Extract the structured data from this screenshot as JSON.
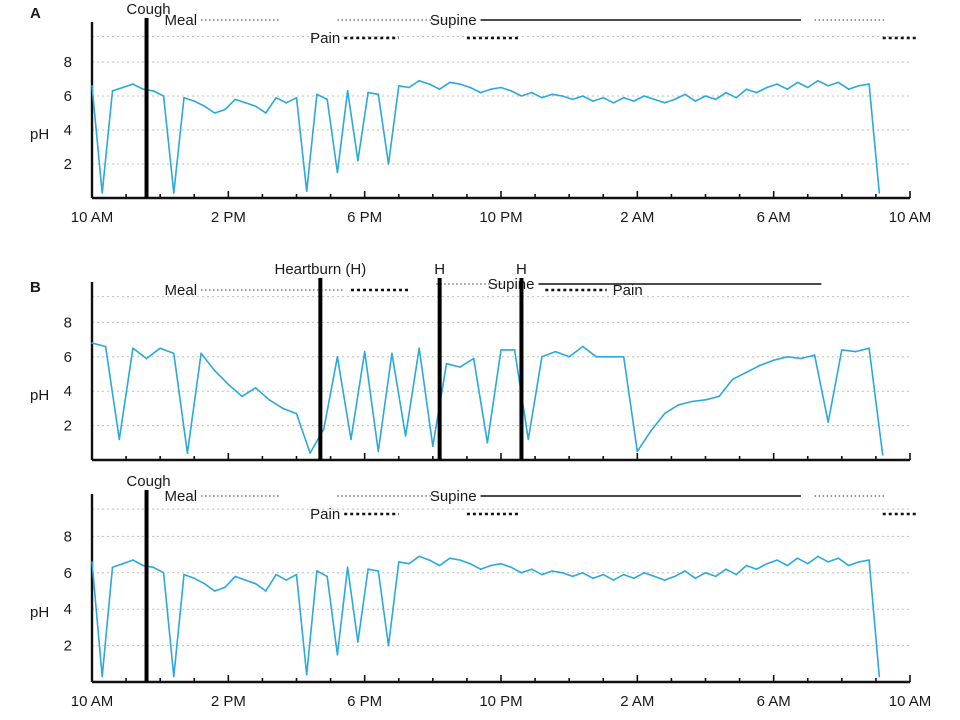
{
  "colors": {
    "trace": "#29a9dc",
    "axis": "#111111",
    "marker": "#000000"
  },
  "chart_data": [
    {
      "type": "line",
      "panel": "A",
      "ylabel": "pH",
      "ylim": [
        0,
        10
      ],
      "y_ticks": [
        2,
        4,
        6,
        8
      ],
      "xlim": [
        0,
        24
      ],
      "x_ticks": [
        0,
        4,
        8,
        12,
        16,
        20,
        24
      ],
      "x_tick_labels": [
        "10 AM",
        "2 PM",
        "6 PM",
        "10 PM",
        "2 AM",
        "6 AM",
        "10 AM"
      ],
      "grid": true,
      "profile": "reflux-dips",
      "series": [
        {
          "x": [
            0.0,
            0.3,
            0.6,
            0.9,
            1.2,
            1.5,
            1.8,
            2.1,
            2.4,
            2.7,
            3.0,
            3.3,
            3.6,
            3.9,
            4.2,
            4.5,
            4.8,
            5.1,
            5.4,
            5.7,
            6.0,
            6.3,
            6.6,
            6.9,
            7.2,
            7.5,
            7.8,
            8.1,
            8.4,
            8.7,
            9.0,
            9.3,
            9.6,
            9.9,
            10.2,
            10.5,
            10.8,
            11.1,
            11.4,
            11.7,
            12.0,
            12.3,
            12.6,
            12.9,
            13.2,
            13.5,
            13.8,
            14.1,
            14.4,
            14.7,
            15.0,
            15.3,
            15.6,
            15.9,
            16.2,
            16.5,
            16.8,
            17.1,
            17.4,
            17.7,
            18.0,
            18.3,
            18.6,
            18.9,
            19.2,
            19.5,
            19.8,
            20.1,
            20.4,
            20.7,
            21.0,
            21.3,
            21.6,
            21.9,
            22.2,
            22.5,
            22.8,
            23.1
          ],
          "values": [
            6.6,
            0.3,
            6.3,
            6.5,
            6.7,
            6.4,
            6.3,
            6.0,
            0.3,
            5.9,
            5.7,
            5.4,
            5.0,
            5.2,
            5.8,
            5.6,
            5.4,
            5.0,
            5.9,
            5.6,
            5.9,
            0.4,
            6.1,
            5.8,
            1.5,
            6.3,
            2.2,
            6.2,
            6.1,
            2.0,
            6.6,
            6.5,
            6.9,
            6.7,
            6.4,
            6.8,
            6.7,
            6.5,
            6.2,
            6.4,
            6.5,
            6.3,
            6.0,
            6.2,
            5.9,
            6.1,
            6.0,
            5.8,
            6.0,
            5.7,
            5.9,
            5.6,
            5.9,
            5.7,
            6.0,
            5.8,
            5.6,
            5.8,
            6.1,
            5.7,
            6.0,
            5.8,
            6.2,
            5.9,
            6.4,
            6.2,
            6.5,
            6.7,
            6.4,
            6.8,
            6.5,
            6.9,
            6.6,
            6.8,
            6.4,
            6.6,
            6.7,
            0.3
          ]
        }
      ],
      "events": [
        {
          "label": "Cough",
          "time": 1.6,
          "kind": "marker"
        }
      ],
      "periods": [
        {
          "label": "Meal",
          "start": 3.2,
          "end": 5.5,
          "style": "dotted"
        },
        {
          "label": "",
          "start": 7.2,
          "end": 10.5,
          "style": "dotted"
        },
        {
          "label": "Supine",
          "start": 11.4,
          "end": 20.8,
          "style": "solid"
        },
        {
          "label": "",
          "start": 21.2,
          "end": 23.3,
          "style": "dotted"
        },
        {
          "label": "Pain",
          "start": 7.4,
          "end": 9.0,
          "style": "dashed"
        },
        {
          "label": "",
          "start": 11.0,
          "end": 12.5,
          "style": "dashed"
        },
        {
          "label": "",
          "start": 23.2,
          "end": 24.2,
          "style": "dashed"
        }
      ]
    },
    {
      "type": "line",
      "panel": "B",
      "ylabel": "pH",
      "ylim": [
        0,
        10
      ],
      "y_ticks": [
        2,
        4,
        6,
        8
      ],
      "xlim": [
        0,
        24
      ],
      "x_ticks": [],
      "x_tick_labels": [],
      "grid": true,
      "profile": "heartburn",
      "series": [
        {
          "x": [
            0.0,
            0.4,
            0.8,
            1.2,
            1.6,
            2.0,
            2.4,
            2.8,
            3.2,
            3.6,
            4.0,
            4.4,
            4.8,
            5.2,
            5.6,
            6.0,
            6.4,
            6.8,
            7.2,
            7.6,
            8.0,
            8.4,
            8.8,
            9.2,
            9.6,
            10.0,
            10.4,
            10.8,
            11.2,
            11.6,
            12.0,
            12.4,
            12.8,
            13.2,
            13.6,
            14.0,
            14.4,
            14.8,
            15.2,
            15.6,
            16.0,
            16.4,
            16.8,
            17.2,
            17.6,
            18.0,
            18.4,
            18.8,
            19.2,
            19.6,
            20.0,
            20.4,
            20.8,
            21.2,
            21.6,
            22.0,
            22.4,
            22.8,
            23.2
          ],
          "values": [
            6.8,
            6.6,
            1.2,
            6.5,
            5.9,
            6.5,
            6.2,
            0.4,
            6.2,
            5.2,
            4.4,
            3.7,
            4.2,
            3.5,
            3.0,
            2.7,
            0.4,
            1.8,
            6.0,
            1.2,
            6.3,
            0.5,
            6.2,
            1.4,
            6.5,
            0.8,
            5.6,
            5.4,
            5.9,
            1.0,
            6.4,
            6.4,
            1.2,
            6.0,
            6.3,
            6.0,
            6.6,
            6.0,
            6.0,
            6.0,
            0.5,
            1.7,
            2.7,
            3.2,
            3.4,
            3.5,
            3.7,
            4.7,
            5.1,
            5.5,
            5.8,
            6.0,
            5.9,
            6.1,
            2.2,
            6.4,
            6.3,
            6.5,
            0.3
          ]
        }
      ],
      "events": [
        {
          "label": "Heartburn (H)",
          "time": 6.7,
          "kind": "marker"
        },
        {
          "label": "H",
          "time": 10.2,
          "kind": "marker"
        },
        {
          "label": "H",
          "time": 12.6,
          "kind": "marker"
        }
      ],
      "periods": [
        {
          "label": "Meal",
          "start": 3.2,
          "end": 7.4,
          "style": "dotted"
        },
        {
          "label": "",
          "start": 7.6,
          "end": 9.3,
          "style": "dashed"
        },
        {
          "label": "",
          "start": 10.1,
          "end": 12.1,
          "style": "dotted"
        },
        {
          "label": "Supine",
          "start": 13.1,
          "end": 21.4,
          "style": "solid"
        },
        {
          "label": "Pain",
          "start": 13.3,
          "end": 15.1,
          "style": "dashed"
        }
      ]
    },
    {
      "type": "line",
      "panel": "",
      "ylabel": "pH",
      "ylim": [
        0,
        10
      ],
      "y_ticks": [
        2,
        4,
        6,
        8
      ],
      "xlim": [
        0,
        24
      ],
      "x_ticks": [
        0,
        4,
        8,
        12,
        16,
        20,
        24
      ],
      "x_tick_labels": [
        "10 AM",
        "2 PM",
        "6 PM",
        "10 PM",
        "2 AM",
        "6 AM",
        "10 AM"
      ],
      "grid": true,
      "profile": "reflux-dips",
      "series": [
        {
          "x": [
            0.0,
            0.3,
            0.6,
            0.9,
            1.2,
            1.5,
            1.8,
            2.1,
            2.4,
            2.7,
            3.0,
            3.3,
            3.6,
            3.9,
            4.2,
            4.5,
            4.8,
            5.1,
            5.4,
            5.7,
            6.0,
            6.3,
            6.6,
            6.9,
            7.2,
            7.5,
            7.8,
            8.1,
            8.4,
            8.7,
            9.0,
            9.3,
            9.6,
            9.9,
            10.2,
            10.5,
            10.8,
            11.1,
            11.4,
            11.7,
            12.0,
            12.3,
            12.6,
            12.9,
            13.2,
            13.5,
            13.8,
            14.1,
            14.4,
            14.7,
            15.0,
            15.3,
            15.6,
            15.9,
            16.2,
            16.5,
            16.8,
            17.1,
            17.4,
            17.7,
            18.0,
            18.3,
            18.6,
            18.9,
            19.2,
            19.5,
            19.8,
            20.1,
            20.4,
            20.7,
            21.0,
            21.3,
            21.6,
            21.9,
            22.2,
            22.5,
            22.8,
            23.1
          ],
          "values": [
            6.6,
            0.3,
            6.3,
            6.5,
            6.7,
            6.4,
            6.3,
            6.0,
            0.3,
            5.9,
            5.7,
            5.4,
            5.0,
            5.2,
            5.8,
            5.6,
            5.4,
            5.0,
            5.9,
            5.6,
            5.9,
            0.4,
            6.1,
            5.8,
            1.5,
            6.3,
            2.2,
            6.2,
            6.1,
            2.0,
            6.6,
            6.5,
            6.9,
            6.7,
            6.4,
            6.8,
            6.7,
            6.5,
            6.2,
            6.4,
            6.5,
            6.3,
            6.0,
            6.2,
            5.9,
            6.1,
            6.0,
            5.8,
            6.0,
            5.7,
            5.9,
            5.6,
            5.9,
            5.7,
            6.0,
            5.8,
            5.6,
            5.8,
            6.1,
            5.7,
            6.0,
            5.8,
            6.2,
            5.9,
            6.4,
            6.2,
            6.5,
            6.7,
            6.4,
            6.8,
            6.5,
            6.9,
            6.6,
            6.8,
            6.4,
            6.6,
            6.7,
            0.3
          ]
        }
      ],
      "events": [
        {
          "label": "Cough",
          "time": 1.6,
          "kind": "marker"
        }
      ],
      "periods": [
        {
          "label": "Meal",
          "start": 3.2,
          "end": 5.5,
          "style": "dotted"
        },
        {
          "label": "",
          "start": 7.2,
          "end": 10.5,
          "style": "dotted"
        },
        {
          "label": "Supine",
          "start": 11.4,
          "end": 20.8,
          "style": "solid"
        },
        {
          "label": "",
          "start": 21.2,
          "end": 23.3,
          "style": "dotted"
        },
        {
          "label": "Pain",
          "start": 7.4,
          "end": 9.0,
          "style": "dashed"
        },
        {
          "label": "",
          "start": 11.0,
          "end": 12.5,
          "style": "dashed"
        },
        {
          "label": "",
          "start": 23.2,
          "end": 24.2,
          "style": "dashed"
        }
      ]
    }
  ]
}
